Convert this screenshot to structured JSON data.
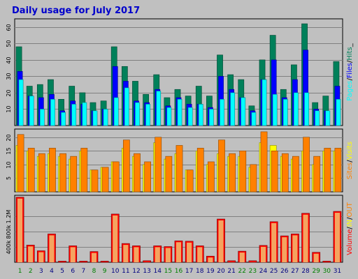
{
  "chart_data": {
    "type": "bar",
    "title": "Daily usage for July 2017",
    "categories": [
      "1",
      "2",
      "3",
      "4",
      "5",
      "6",
      "7",
      "8",
      "9",
      "10",
      "11",
      "12",
      "13",
      "14",
      "15",
      "16",
      "17",
      "18",
      "19",
      "20",
      "21",
      "22",
      "23",
      "24",
      "25",
      "26",
      "27",
      "28",
      "29",
      "30",
      "31"
    ],
    "weekend_days": [
      "1",
      "2",
      "8",
      "9",
      "15",
      "16",
      "22",
      "23",
      "29",
      "30"
    ],
    "colors": {
      "background": "#c0c0c0",
      "title": "#0000cc",
      "hits": "#00805a",
      "files": "#0000ff",
      "pages": "#00ffff",
      "visits": "#ffff00",
      "sites": "#ff8000",
      "kbytes": "#ff0000",
      "weekday_label": "#000080",
      "weekend_label": "#008000"
    },
    "panels": [
      {
        "name": "requests",
        "ylim": [
          0,
          65
        ],
        "yticks": [
          10,
          20,
          30,
          40,
          50,
          60
        ],
        "ylabels": [
          "10",
          "20",
          "30",
          "40",
          "50",
          "60"
        ],
        "legend": [
          "Pages",
          "/",
          "Files",
          "/",
          "Hits",
          "_"
        ],
        "series": [
          {
            "name": "Hits",
            "values": [
              48,
              24,
              25,
              28,
              16,
              24,
              20,
              14,
              15,
              48,
              36,
              27,
              19,
              31,
              17,
              22,
              18,
              24,
              18,
              43,
              31,
              28,
              12,
              40,
              55,
              22,
              37,
              62,
              14,
              18,
              39
            ]
          },
          {
            "name": "Files",
            "values": [
              33,
              18,
              17,
              19,
              9,
              15,
              13,
              9,
              10,
              36,
              27,
              15,
              14,
              22,
              12,
              17,
              13,
              13,
              11,
              30,
              22,
              17,
              9,
              28,
              40,
              17,
              28,
              46,
              10,
              9,
              24
            ]
          },
          {
            "name": "Pages",
            "values": [
              28,
              18,
              10,
              16,
              8,
              13,
              14,
              9,
              10,
              17,
              23,
              14,
              13,
              21,
              11,
              16,
              11,
              13,
              10,
              16,
              20,
              17,
              8,
              28,
              19,
              16,
              20,
              20,
              9,
              9,
              16
            ]
          }
        ]
      },
      {
        "name": "visitors",
        "ylim": [
          0,
          23
        ],
        "yticks": [
          5,
          10,
          15,
          20
        ],
        "ylabels": [
          "5",
          "10",
          "15",
          "20"
        ],
        "legend": [
          "Sites",
          "/",
          "Visits"
        ],
        "series": [
          {
            "name": "Visits",
            "values": [
              17,
              15,
              13,
              14,
              13,
              12,
              15,
              8,
              9,
              11,
              16,
              13,
              10,
              18,
              12,
              14,
              8,
              15,
              10,
              14,
              13,
              13,
              9,
              18,
              17,
              13,
              12,
              15,
              10,
              15,
              15
            ]
          },
          {
            "name": "Sites",
            "values": [
              21,
              16,
              14,
              16,
              14,
              13,
              16,
              8,
              9,
              11,
              19,
              14,
              11,
              20,
              13,
              17,
              8,
              16,
              11,
              19,
              14,
              15,
              10,
              22,
              15,
              14,
              13,
              20,
              13,
              16,
              16
            ]
          }
        ]
      },
      {
        "name": "volume",
        "ylim": [
          0,
          1750
        ],
        "yticks": [
          400,
          800,
          1200
        ],
        "ylabels": [
          "400k",
          "800k",
          "1.2M"
        ],
        "legend": [
          "Volume",
          "/",
          "IN",
          "/",
          "OUT"
        ],
        "series": [
          {
            "name": "Volume",
            "values": [
              1700,
              450,
              300,
              740,
              30,
              430,
              30,
              280,
              30,
              1260,
              490,
              430,
              40,
              430,
              410,
              560,
              550,
              430,
              160,
              1130,
              40,
              290,
              40,
              440,
              1060,
              690,
              740,
              1280,
              260,
              30,
              1330
            ]
          }
        ]
      }
    ]
  }
}
